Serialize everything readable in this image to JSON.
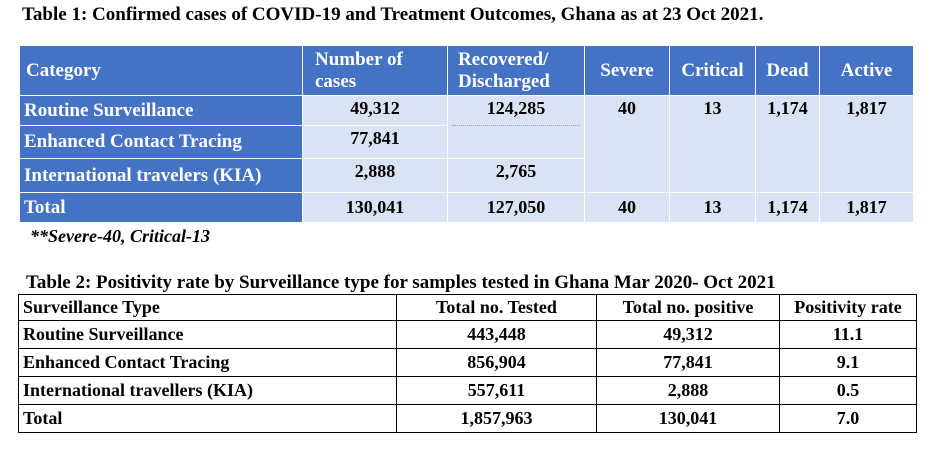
{
  "table1": {
    "title": "Table 1: Confirmed cases of COVID-19 and Treatment Outcomes, Ghana as at 23 Oct 2021.",
    "headers": {
      "category": "Category",
      "cases": "Number of cases",
      "recovered": "Recovered/ Discharged",
      "severe": "Severe",
      "critical": "Critical",
      "dead": "Dead",
      "active": "Active"
    },
    "rows": {
      "routine": {
        "label": "Routine Surveillance",
        "cases": "49,312",
        "recovered": "124,285",
        "severe": "40",
        "critical": "13",
        "dead": "1,174",
        "active": "1,817"
      },
      "enhanced": {
        "label": "Enhanced Contact Tracing",
        "cases": "77,841"
      },
      "international": {
        "label": "International travelers (KIA)",
        "cases": "2,888",
        "recovered": "2,765"
      },
      "total": {
        "label": "Total",
        "cases": "130,041",
        "recovered": "127,050",
        "severe": "40",
        "critical": "13",
        "dead": "1,174",
        "active": "1,817"
      }
    },
    "colors": {
      "header": "#4472c4",
      "body": "#dae3f3"
    }
  },
  "note": "**Severe-40, Critical-13",
  "table2": {
    "title": "Table 2: Positivity rate by Surveillance type for samples tested in Ghana Mar 2020- Oct 2021",
    "headers": [
      "Surveillance Type",
      "Total no. Tested",
      "Total no. positive",
      "Positivity rate"
    ],
    "rows": [
      [
        "Routine Surveillance",
        "443,448",
        "49,312",
        "11.1"
      ],
      [
        "Enhanced Contact Tracing",
        "856,904",
        "77,841",
        "9.1"
      ],
      [
        "International travellers (KIA)",
        "557,611",
        "2,888",
        "0.5"
      ],
      [
        "Total",
        "1,857,963",
        "130,041",
        "7.0"
      ]
    ]
  }
}
